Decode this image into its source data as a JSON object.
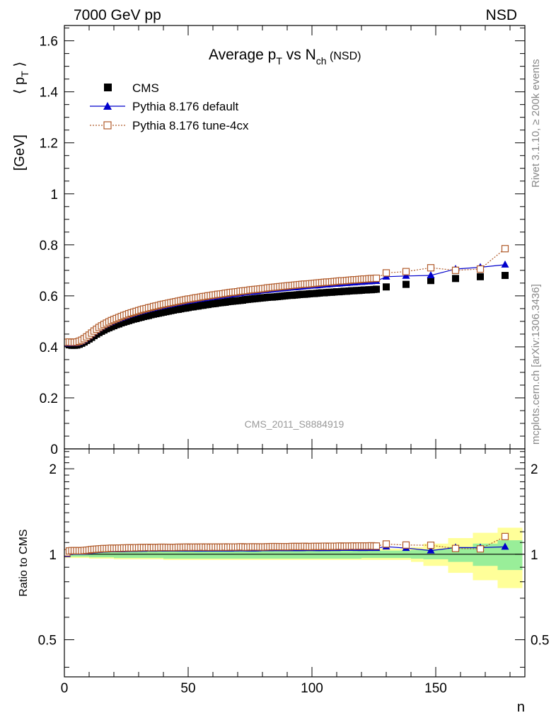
{
  "header": {
    "left": "7000 GeV pp",
    "right": "NSD"
  },
  "side_labels": {
    "rivet": "Rivet 3.1.10, ≥ 200k events",
    "mcplots": "mcplots.cern.ch [arXiv:1306.3436]"
  },
  "chart_data": {
    "type": "line",
    "title": "Average p_T vs N_ch (NSD)",
    "xlabel": "n",
    "ylabel": "⟨ p_T ⟩ [GeV]",
    "ratio_ylabel": "Ratio to CMS",
    "analysis": "CMS_2011_S8884919",
    "xlim": [
      0,
      186
    ],
    "ylim": [
      0,
      1.66
    ],
    "ratio_ylim": [
      0.37,
      2.35
    ],
    "ratio_scale": "log",
    "legend_position": "top-left",
    "x_ticks": [
      "0",
      "50",
      "100",
      "150"
    ],
    "y_ticks": [
      "0",
      "0.2",
      "0.4",
      "0.6",
      "0.8",
      "1",
      "1.2",
      "1.4",
      "1.6"
    ],
    "ratio_ticks": [
      "0.5",
      "1",
      "2"
    ],
    "x": [
      1,
      2,
      3,
      4,
      5,
      6,
      7,
      8,
      9,
      10,
      11,
      12,
      13,
      14,
      15,
      16,
      17,
      18,
      19,
      20,
      21,
      22,
      23,
      24,
      25,
      26,
      27,
      28,
      29,
      30,
      31,
      32,
      33,
      34,
      35,
      36,
      37,
      38,
      39,
      40,
      41,
      42,
      43,
      44,
      45,
      46,
      47,
      48,
      49,
      50,
      51,
      52,
      53,
      54,
      55,
      56,
      57,
      58,
      59,
      60,
      61,
      62,
      63,
      64,
      65,
      66,
      67,
      68,
      69,
      70,
      71,
      72,
      73,
      74,
      75,
      76,
      77,
      78,
      79,
      80,
      81,
      82,
      83,
      84,
      85,
      86,
      87,
      88,
      89,
      90,
      91,
      92,
      93,
      94,
      95,
      96,
      97,
      98,
      99,
      100,
      101,
      102,
      103,
      104,
      105,
      106,
      107,
      108,
      109,
      110,
      111,
      112,
      113,
      114,
      115,
      116,
      117,
      118,
      119,
      120,
      121,
      122,
      123,
      124,
      125,
      126,
      130,
      138,
      148,
      158,
      168,
      178
    ],
    "series": [
      {
        "name": "CMS",
        "color": "#000000",
        "marker": "filled-square",
        "values": [
          0.413,
          0.408,
          0.406,
          0.406,
          0.407,
          0.41,
          0.414,
          0.419,
          0.425,
          0.431,
          0.437,
          0.444,
          0.45,
          0.456,
          0.461,
          0.466,
          0.471,
          0.475,
          0.479,
          0.483,
          0.487,
          0.49,
          0.494,
          0.497,
          0.5,
          0.503,
          0.506,
          0.509,
          0.511,
          0.514,
          0.516,
          0.519,
          0.521,
          0.523,
          0.526,
          0.528,
          0.53,
          0.532,
          0.534,
          0.536,
          0.538,
          0.54,
          0.542,
          0.544,
          0.546,
          0.547,
          0.549,
          0.551,
          0.552,
          0.554,
          0.556,
          0.557,
          0.559,
          0.56,
          0.562,
          0.563,
          0.565,
          0.566,
          0.568,
          0.569,
          0.57,
          0.572,
          0.573,
          0.574,
          0.575,
          0.577,
          0.578,
          0.579,
          0.58,
          0.581,
          0.582,
          0.583,
          0.585,
          0.586,
          0.587,
          0.588,
          0.589,
          0.59,
          0.591,
          0.592,
          0.593,
          0.594,
          0.595,
          0.595,
          0.596,
          0.597,
          0.598,
          0.599,
          0.6,
          0.601,
          0.602,
          0.602,
          0.603,
          0.604,
          0.605,
          0.606,
          0.606,
          0.607,
          0.608,
          0.609,
          0.609,
          0.61,
          0.611,
          0.612,
          0.612,
          0.613,
          0.614,
          0.614,
          0.615,
          0.616,
          0.616,
          0.617,
          0.618,
          0.618,
          0.619,
          0.62,
          0.62,
          0.621,
          0.621,
          0.622,
          0.623,
          0.623,
          0.624,
          0.624,
          0.625,
          0.626,
          0.635,
          0.645,
          0.66,
          0.668,
          0.675,
          0.68
        ]
      },
      {
        "name": "Pythia 8.176 default",
        "color": "#0000cc",
        "marker": "filled-triangle",
        "values": [
          0.413,
          0.415,
          0.414,
          0.414,
          0.415,
          0.418,
          0.422,
          0.428,
          0.435,
          0.442,
          0.45,
          0.458,
          0.465,
          0.472,
          0.478,
          0.484,
          0.489,
          0.494,
          0.498,
          0.503,
          0.507,
          0.51,
          0.514,
          0.518,
          0.521,
          0.525,
          0.528,
          0.531,
          0.534,
          0.537,
          0.54,
          0.542,
          0.545,
          0.548,
          0.55,
          0.552,
          0.555,
          0.557,
          0.559,
          0.561,
          0.563,
          0.565,
          0.567,
          0.569,
          0.571,
          0.573,
          0.575,
          0.577,
          0.578,
          0.58,
          0.582,
          0.583,
          0.585,
          0.587,
          0.588,
          0.59,
          0.591,
          0.593,
          0.594,
          0.596,
          0.597,
          0.599,
          0.6,
          0.601,
          0.603,
          0.604,
          0.605,
          0.607,
          0.608,
          0.609,
          0.61,
          0.612,
          0.613,
          0.614,
          0.615,
          0.616,
          0.617,
          0.618,
          0.62,
          0.621,
          0.622,
          0.623,
          0.624,
          0.625,
          0.626,
          0.627,
          0.628,
          0.629,
          0.63,
          0.631,
          0.632,
          0.633,
          0.633,
          0.634,
          0.635,
          0.636,
          0.637,
          0.638,
          0.639,
          0.64,
          0.64,
          0.641,
          0.642,
          0.643,
          0.644,
          0.644,
          0.645,
          0.646,
          0.647,
          0.647,
          0.648,
          0.649,
          0.65,
          0.65,
          0.651,
          0.652,
          0.652,
          0.653,
          0.654,
          0.654,
          0.655,
          0.656,
          0.656,
          0.657,
          0.658,
          0.658,
          0.675,
          0.678,
          0.68,
          0.705,
          0.712,
          0.722
        ]
      },
      {
        "name": "Pythia 8.176 tune-4cx",
        "color": "#b05a2a",
        "marker": "open-square",
        "values": [
          0.418,
          0.419,
          0.418,
          0.418,
          0.419,
          0.422,
          0.426,
          0.432,
          0.439,
          0.446,
          0.454,
          0.462,
          0.469,
          0.476,
          0.482,
          0.488,
          0.493,
          0.498,
          0.503,
          0.507,
          0.511,
          0.515,
          0.519,
          0.523,
          0.526,
          0.53,
          0.533,
          0.536,
          0.539,
          0.542,
          0.545,
          0.548,
          0.55,
          0.553,
          0.555,
          0.558,
          0.56,
          0.562,
          0.565,
          0.567,
          0.569,
          0.571,
          0.573,
          0.575,
          0.577,
          0.579,
          0.581,
          0.583,
          0.585,
          0.587,
          0.588,
          0.59,
          0.592,
          0.593,
          0.595,
          0.597,
          0.598,
          0.6,
          0.601,
          0.603,
          0.604,
          0.606,
          0.607,
          0.608,
          0.61,
          0.611,
          0.613,
          0.614,
          0.615,
          0.616,
          0.618,
          0.619,
          0.62,
          0.621,
          0.623,
          0.624,
          0.625,
          0.626,
          0.627,
          0.628,
          0.629,
          0.631,
          0.632,
          0.633,
          0.634,
          0.635,
          0.636,
          0.637,
          0.638,
          0.639,
          0.64,
          0.641,
          0.642,
          0.643,
          0.644,
          0.645,
          0.646,
          0.646,
          0.647,
          0.648,
          0.649,
          0.65,
          0.651,
          0.652,
          0.653,
          0.654,
          0.654,
          0.655,
          0.656,
          0.657,
          0.658,
          0.659,
          0.659,
          0.66,
          0.661,
          0.662,
          0.663,
          0.663,
          0.664,
          0.665,
          0.666,
          0.666,
          0.667,
          0.668,
          0.668,
          0.669,
          0.69,
          0.695,
          0.71,
          0.7,
          0.705,
          0.785
        ]
      }
    ],
    "cms_uncertainty": {
      "x_edges": [
        0,
        10,
        20,
        40,
        60,
        80,
        100,
        120,
        130,
        140,
        145,
        155,
        165,
        175,
        185
      ],
      "inner_rel": [
        0.02,
        0.025,
        0.03,
        0.035,
        0.035,
        0.035,
        0.035,
        0.03,
        0.03,
        0.035,
        0.04,
        0.06,
        0.09,
        0.12
      ],
      "outer_rel": [
        0.03,
        0.035,
        0.04,
        0.045,
        0.045,
        0.045,
        0.045,
        0.045,
        0.045,
        0.06,
        0.09,
        0.14,
        0.19,
        0.24
      ]
    }
  }
}
